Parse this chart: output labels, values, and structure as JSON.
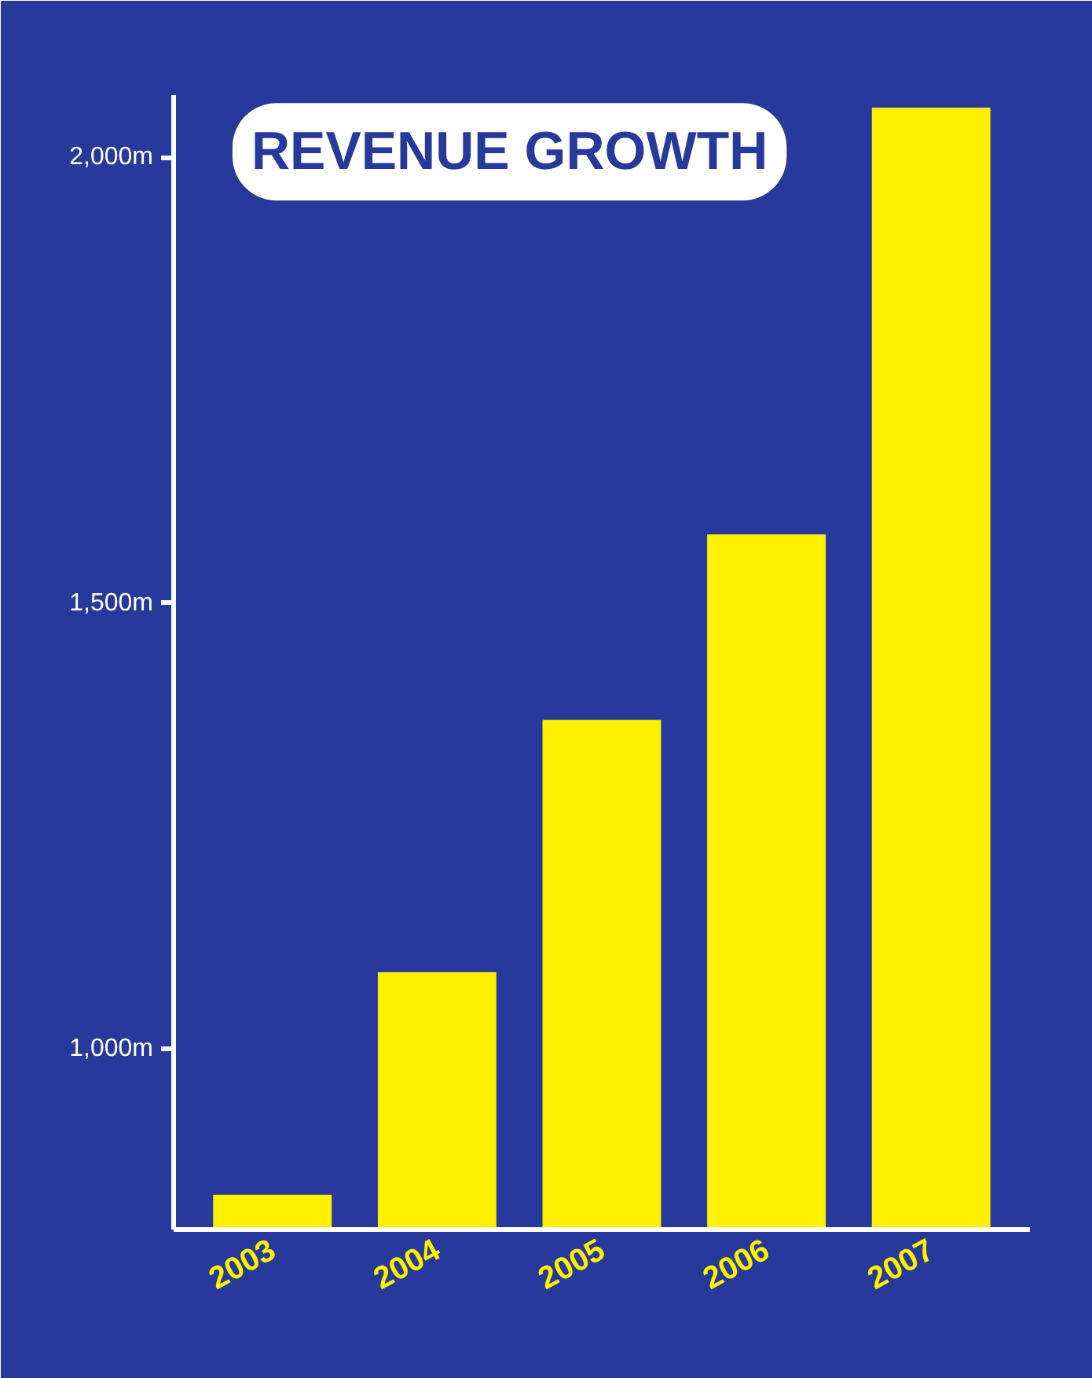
{
  "chart_data": {
    "type": "bar",
    "title": "REVENUE GROWTH",
    "categories": [
      "2003",
      "2004",
      "2005",
      "2006",
      "2007"
    ],
    "values": [
      836,
      1086,
      1369,
      1577,
      2056
    ],
    "color": "#fff000",
    "ylim": [
      797,
      2070
    ],
    "yticks": [
      {
        "value": 1000,
        "label": "1,000m"
      },
      {
        "value": 1500,
        "label": "1,500m"
      },
      {
        "value": 2000,
        "label": "2,000m"
      }
    ],
    "grid": false
  }
}
